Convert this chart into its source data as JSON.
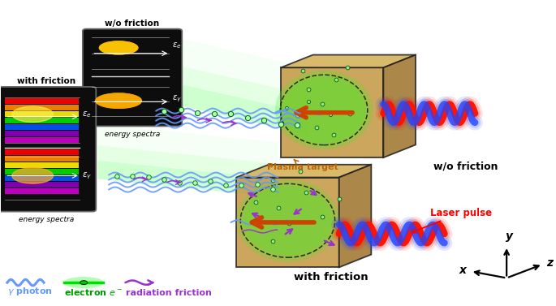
{
  "bg_color": "#ffffff",
  "figsize": [
    6.85,
    3.77
  ],
  "dpi": 100,
  "colors": {
    "gamma_wave": "#6699ff",
    "electron_green": "#00ff00",
    "radiation_purple": "#9933cc",
    "laser_red": "#ff1100",
    "laser_blue": "#2244ff",
    "plasma_box_tan": "#c49a45",
    "plasma_box_side": "#a07830",
    "plasma_box_top": "#d4b058",
    "arrow_orange": "#cc4400",
    "text_plasma": "#bb6600",
    "text_laser": "#ff0000",
    "green_glow": "#44ee22"
  },
  "labels": {
    "wo_friction": "w/o friction",
    "with_friction": "with friction",
    "plasma_target": "Plasma target",
    "laser_pulse": "Laser pulse",
    "energy_spectra": "energy spectra",
    "gamma_photon": "γ photon",
    "electron": "electron e⁻",
    "radiation_friction": "radiation friction"
  }
}
